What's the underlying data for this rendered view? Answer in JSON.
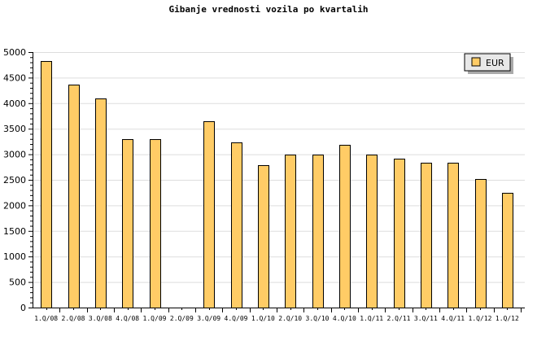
{
  "chart_data": {
    "type": "bar",
    "title": "Gibanje vrednosti vozila po kvartalih",
    "xlabel": "",
    "ylabel": "",
    "categories": [
      "1.Q/08",
      "2.Q/08",
      "3.Q/08",
      "4.Q/08",
      "1.Q/09",
      "2.Q/09",
      "3.Q/09",
      "4.Q/09",
      "1.Q/10",
      "2.Q/10",
      "3.Q/10",
      "4.Q/10",
      "1.Q/11",
      "2.Q/11",
      "3.Q/11",
      "4.Q/11",
      "1.Q/12",
      "1.Q/12"
    ],
    "series": [
      {
        "name": "EUR",
        "color": "#ffcc66",
        "values": [
          4830,
          4370,
          4100,
          3300,
          3300,
          0,
          3640,
          3240,
          2780,
          2990,
          2990,
          3180,
          2990,
          2910,
          2840,
          2840,
          2520,
          2250
        ]
      }
    ],
    "ylim": [
      0,
      5000
    ],
    "yticks": [
      0,
      500,
      1000,
      1500,
      2000,
      2500,
      3000,
      3500,
      4000,
      4500,
      5000
    ],
    "grid": true,
    "legend_position": "top-right"
  }
}
